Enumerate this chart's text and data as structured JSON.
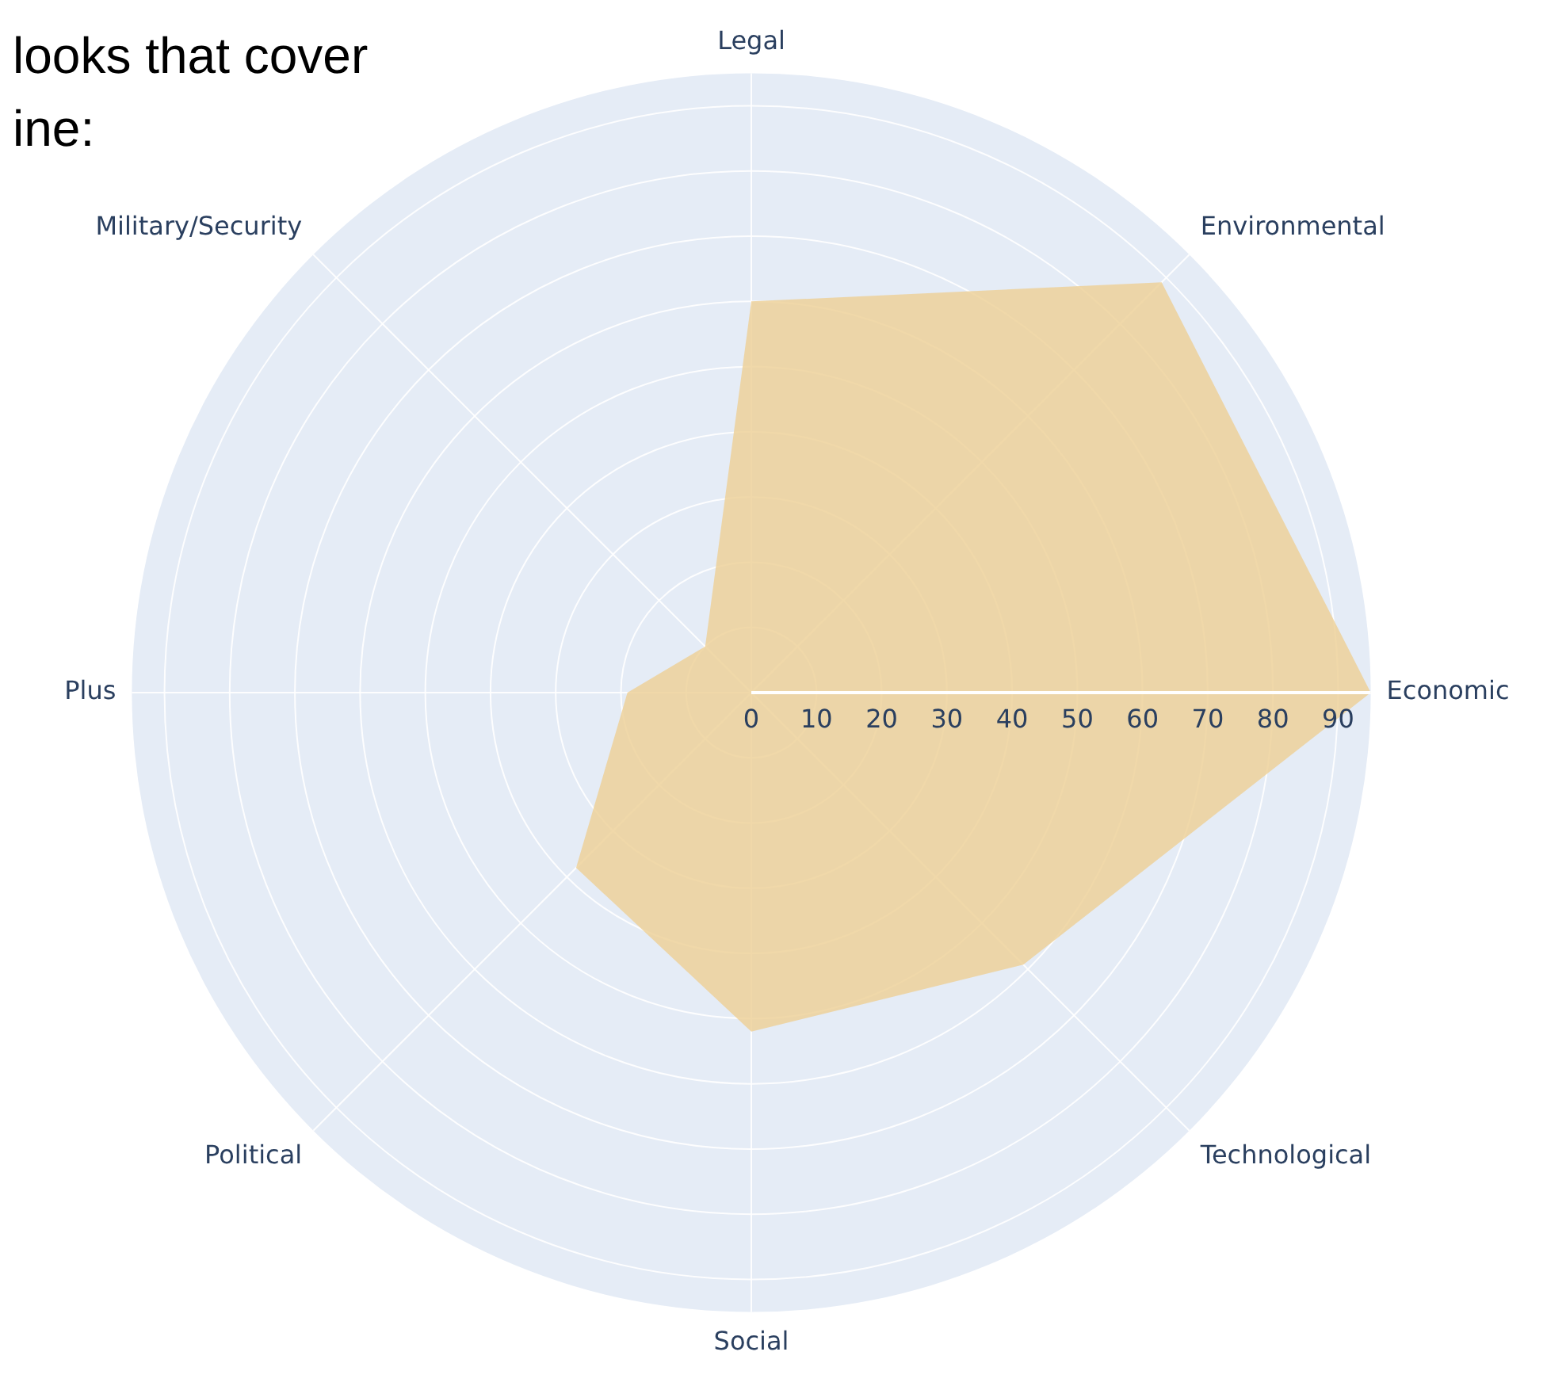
{
  "chart_data": {
    "type": "radar",
    "categories": [
      "Legal",
      "Environmental",
      "Economic",
      "Technological",
      "Social",
      "Political",
      "Plus",
      "Military/Security"
    ],
    "series": [
      {
        "color": "#edd19a",
        "values": [
          60,
          89,
          95,
          59,
          52,
          38,
          19,
          10
        ]
      }
    ],
    "ylim": [
      0,
      95
    ],
    "yticks": [
      0,
      10,
      20,
      30,
      40,
      50,
      60,
      70,
      80,
      90
    ],
    "grid": true,
    "legend": false,
    "marker": "none",
    "annotations": [
      "looks that cover",
      "ine:"
    ]
  }
}
